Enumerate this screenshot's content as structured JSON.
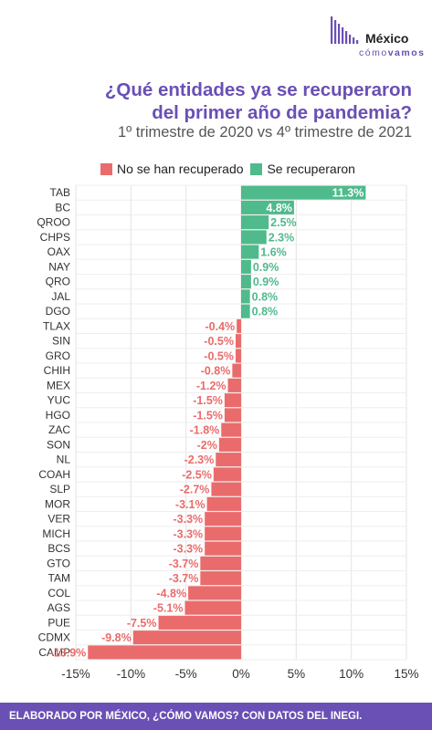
{
  "logo": {
    "brand_name": "México",
    "brand_sub_1": "cómo",
    "brand_sub_2": "vamos",
    "bar_color": "#6a4fb5"
  },
  "header": {
    "title_line1": "¿Qué entidades ya se recuperaron",
    "title_line2": "del primer año de pandemia?",
    "subtitle": "1º trimestre de 2020 vs 4º trimestre de 2021"
  },
  "legend": {
    "items": [
      {
        "label": "No se han recuperado",
        "color": "#ea6b6b"
      },
      {
        "label": "Se recuperaron",
        "color": "#4fba8c"
      }
    ]
  },
  "footer": {
    "text": "ELABORADO POR MÉXICO, ¿CÓMO VAMOS? CON DATOS DEL INEGI."
  },
  "chart_data": {
    "type": "bar",
    "orientation": "horizontal",
    "xlim": [
      -15,
      15
    ],
    "xticks": [
      -15,
      -10,
      -5,
      0,
      5,
      10,
      15
    ],
    "xtick_labels": [
      "-15%",
      "-10%",
      "-5%",
      "0%",
      "5%",
      "10%",
      "15%"
    ],
    "grid": true,
    "colors": {
      "positive": "#4fba8c",
      "negative": "#ea6b6b"
    },
    "categories": [
      "TAB",
      "BC",
      "QROO",
      "CHPS",
      "OAX",
      "NAY",
      "QRO",
      "JAL",
      "DGO",
      "TLAX",
      "SIN",
      "GRO",
      "CHIH",
      "MEX",
      "YUC",
      "HGO",
      "ZAC",
      "SON",
      "NL",
      "COAH",
      "SLP",
      "MOR",
      "VER",
      "MICH",
      "BCS",
      "GTO",
      "TAM",
      "COL",
      "AGS",
      "PUE",
      "CDMX",
      "CAMP"
    ],
    "values": [
      11.3,
      4.8,
      2.5,
      2.3,
      1.6,
      0.9,
      0.9,
      0.8,
      0.8,
      -0.4,
      -0.5,
      -0.5,
      -0.8,
      -1.2,
      -1.5,
      -1.5,
      -1.8,
      -2,
      -2.3,
      -2.5,
      -2.7,
      -3.1,
      -3.3,
      -3.3,
      -3.3,
      -3.7,
      -3.7,
      -4.8,
      -5.1,
      -7.5,
      -9.8,
      -13.9
    ],
    "value_labels": [
      "11.3%",
      "4.8%",
      "2.5%",
      "2.3%",
      "1.6%",
      "0.9%",
      "0.9%",
      "0.8%",
      "0.8%",
      "-0.4%",
      "-0.5%",
      "-0.5%",
      "-0.8%",
      "-1.2%",
      "-1.5%",
      "-1.5%",
      "-1.8%",
      "-2%",
      "-2.3%",
      "-2.5%",
      "-2.7%",
      "-3.1%",
      "-3.3%",
      "-3.3%",
      "-3.3%",
      "-3.7%",
      "-3.7%",
      "-4.8%",
      "-5.1%",
      "-7.5%",
      "-9.8%",
      "-13.9%"
    ]
  }
}
